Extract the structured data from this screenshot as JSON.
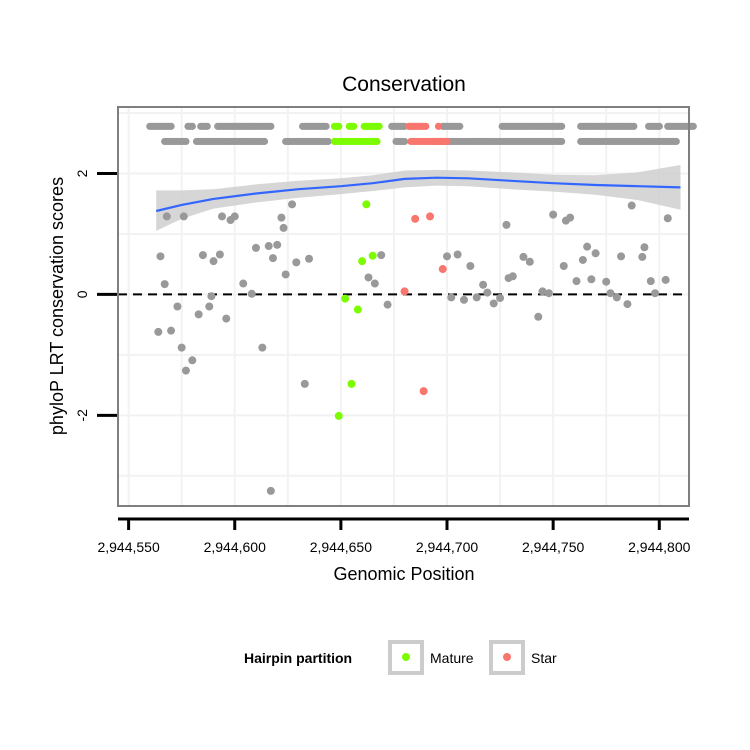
{
  "chart_data": {
    "type": "scatter",
    "title": "Conservation",
    "xlabel": "Genomic Position",
    "ylabel": "phyloP LRT conservation scores",
    "xlim": [
      2944545,
      2944814
    ],
    "ylim": [
      -3.5,
      3.1
    ],
    "x_ticks": [
      2944550,
      2944600,
      2944650,
      2944700,
      2944750,
      2944800
    ],
    "x_tick_labels": [
      "2,944,550",
      "2,944,600",
      "2,944,650",
      "2,944,700",
      "2,944,750",
      "2,944,800"
    ],
    "y_ticks": [
      -2,
      0,
      2
    ],
    "y_tick_labels": [
      "-2",
      "0",
      "2"
    ],
    "reference_line": {
      "y": 0,
      "style": "dashed"
    },
    "grid": true,
    "colors": {
      "Other": "#999999",
      "Mature": "#7CFC00",
      "Star": "#F8766D",
      "smooth_line": "#3366FF",
      "ribbon": "#CCCCCC",
      "panel_border": "#7F7F7F",
      "grid": "#F2F2F2"
    },
    "legend": {
      "title": "Hairpin partition",
      "position": "bottom",
      "entries": [
        {
          "label": "Mature",
          "color": "#7CFC00"
        },
        {
          "label": "Star",
          "color": "#F8766D"
        }
      ]
    },
    "smooth": {
      "x": [
        2944563,
        2944575,
        2944590,
        2944610,
        2944630,
        2944650,
        2944665,
        2944680,
        2944695,
        2944710,
        2944730,
        2944750,
        2944770,
        2944790,
        2944810
      ],
      "y": [
        1.38,
        1.48,
        1.58,
        1.67,
        1.74,
        1.79,
        1.84,
        1.91,
        1.93,
        1.92,
        1.88,
        1.84,
        1.81,
        1.79,
        1.77
      ],
      "lower": [
        1.05,
        1.25,
        1.42,
        1.52,
        1.6,
        1.66,
        1.71,
        1.77,
        1.8,
        1.79,
        1.74,
        1.7,
        1.65,
        1.56,
        1.4
      ],
      "upper": [
        1.72,
        1.72,
        1.74,
        1.82,
        1.88,
        1.92,
        1.97,
        2.05,
        2.06,
        2.05,
        2.02,
        1.98,
        1.97,
        2.02,
        2.14
      ]
    },
    "series": [
      {
        "name": "Other",
        "points": [
          [
            2944564,
            -0.62
          ],
          [
            2944565,
            0.63
          ],
          [
            2944567,
            0.17
          ],
          [
            2944568,
            1.29
          ],
          [
            2944570,
            -0.6
          ],
          [
            2944573,
            -0.2
          ],
          [
            2944575,
            -0.88
          ],
          [
            2944576,
            1.29
          ],
          [
            2944577,
            -1.26
          ],
          [
            2944580,
            -1.09
          ],
          [
            2944583,
            -0.33
          ],
          [
            2944585,
            0.65
          ],
          [
            2944588,
            -0.2
          ],
          [
            2944589,
            -0.03
          ],
          [
            2944590,
            0.55
          ],
          [
            2944593,
            0.66
          ],
          [
            2944594,
            1.29
          ],
          [
            2944596,
            -0.4
          ],
          [
            2944598,
            1.23
          ],
          [
            2944600,
            1.29
          ],
          [
            2944604,
            0.18
          ],
          [
            2944608,
            0.01
          ],
          [
            2944610,
            0.77
          ],
          [
            2944613,
            -0.88
          ],
          [
            2944616,
            0.8
          ],
          [
            2944618,
            0.6
          ],
          [
            2944620,
            0.82
          ],
          [
            2944622,
            1.27
          ],
          [
            2944623,
            1.1
          ],
          [
            2944624,
            0.33
          ],
          [
            2944627,
            1.49
          ],
          [
            2944629,
            0.53
          ],
          [
            2944633,
            -1.48
          ],
          [
            2944635,
            0.59
          ],
          [
            2944663,
            0.28
          ],
          [
            2944666,
            0.18
          ],
          [
            2944669,
            0.65
          ],
          [
            2944672,
            -0.17
          ],
          [
            2944700,
            0.63
          ],
          [
            2944702,
            -0.05
          ],
          [
            2944705,
            0.66
          ],
          [
            2944708,
            -0.09
          ],
          [
            2944711,
            0.47
          ],
          [
            2944714,
            -0.05
          ],
          [
            2944717,
            0.16
          ],
          [
            2944719,
            0.03
          ],
          [
            2944722,
            -0.15
          ],
          [
            2944725,
            -0.06
          ],
          [
            2944728,
            1.15
          ],
          [
            2944729,
            0.27
          ],
          [
            2944731,
            0.3
          ],
          [
            2944736,
            0.62
          ],
          [
            2944739,
            0.54
          ],
          [
            2944743,
            -0.37
          ],
          [
            2944745,
            0.05
          ],
          [
            2944748,
            0.02
          ],
          [
            2944750,
            1.32
          ],
          [
            2944755,
            0.47
          ],
          [
            2944756,
            1.22
          ],
          [
            2944758,
            1.27
          ],
          [
            2944761,
            0.22
          ],
          [
            2944764,
            0.57
          ],
          [
            2944766,
            0.79
          ],
          [
            2944768,
            0.25
          ],
          [
            2944770,
            0.68
          ],
          [
            2944775,
            0.21
          ],
          [
            2944777,
            0.02
          ],
          [
            2944780,
            -0.05
          ],
          [
            2944782,
            0.63
          ],
          [
            2944785,
            -0.16
          ],
          [
            2944787,
            1.47
          ],
          [
            2944792,
            0.62
          ],
          [
            2944793,
            0.78
          ],
          [
            2944796,
            0.22
          ],
          [
            2944798,
            0.02
          ],
          [
            2944803,
            0.24
          ],
          [
            2944804,
            1.26
          ],
          [
            2944617,
            -3.25
          ]
        ]
      },
      {
        "name": "Mature",
        "points": [
          [
            2944649,
            -2.01
          ],
          [
            2944652,
            -0.07
          ],
          [
            2944655,
            -1.48
          ],
          [
            2944658,
            -0.25
          ],
          [
            2944660,
            0.55
          ],
          [
            2944662,
            1.49
          ],
          [
            2944665,
            0.64
          ]
        ]
      },
      {
        "name": "Star",
        "points": [
          [
            2944680,
            0.05
          ],
          [
            2944685,
            1.25
          ],
          [
            2944689,
            -1.6
          ],
          [
            2944692,
            1.29
          ],
          [
            2944698,
            0.42
          ]
        ]
      }
    ],
    "top_rows": [
      {
        "y": 2.78,
        "other": [
          [
            2944560,
            2944570
          ],
          [
            2944578,
            2944580
          ],
          [
            2944584,
            2944587
          ],
          [
            2944592,
            2944617
          ],
          [
            2944632,
            2944643
          ],
          [
            2944674,
            2944680
          ],
          [
            2944698,
            2944706
          ],
          [
            2944726,
            2944754
          ],
          [
            2944763,
            2944788
          ],
          [
            2944795,
            2944800
          ],
          [
            2944804,
            2944816
          ]
        ],
        "mature": [
          [
            2944647,
            2944649
          ],
          [
            2944654,
            2944656
          ],
          [
            2944661,
            2944668
          ]
        ],
        "star": [
          [
            2944682,
            2944690
          ],
          [
            2944696,
            2944696
          ]
        ]
      },
      {
        "y": 2.53,
        "other": [
          [
            2944567,
            2944577
          ],
          [
            2944582,
            2944614
          ],
          [
            2944624,
            2944644
          ],
          [
            2944676,
            2944680
          ],
          [
            2944693,
            2944754
          ],
          [
            2944763,
            2944808
          ]
        ],
        "mature": [
          [
            2944647,
            2944667
          ]
        ],
        "star": [
          [
            2944683,
            2944700
          ]
        ]
      }
    ]
  }
}
